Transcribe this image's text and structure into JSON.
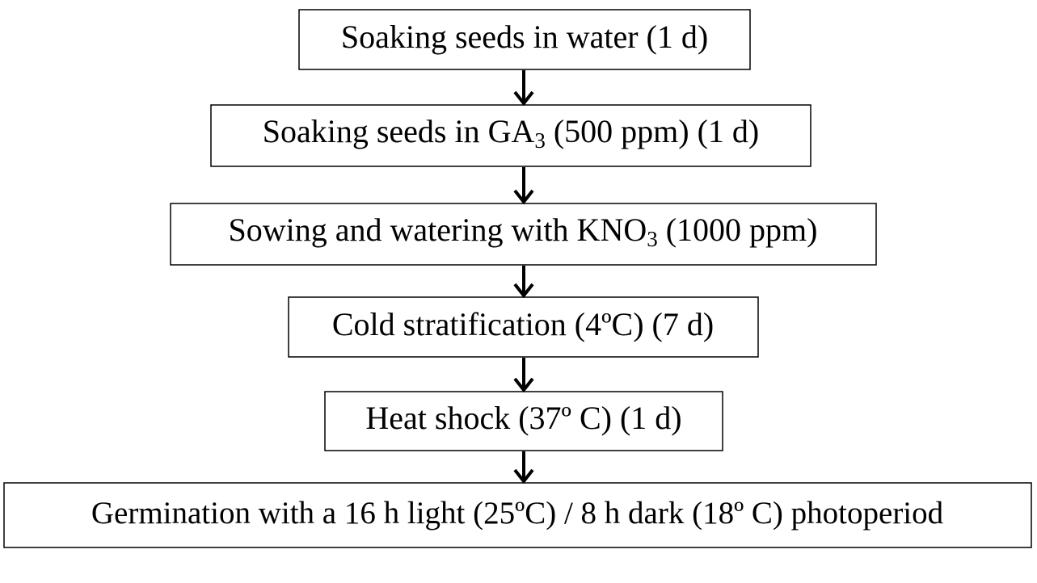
{
  "nodes": [
    {
      "parts": [
        "Soaking seeds in water (1 d)"
      ]
    },
    {
      "parts": [
        "Soaking seeds in GA",
        "3",
        " (500 ppm) (1 d)"
      ]
    },
    {
      "parts": [
        "Sowing and watering with KNO",
        "3",
        " (1000 ppm)"
      ]
    },
    {
      "parts": [
        "Cold stratification (4ºC) (7 d)"
      ]
    },
    {
      "parts": [
        "Heat shock (37º C) (1 d)"
      ]
    },
    {
      "parts": [
        "Germination with a 16 h light (25ºC) / 8 h dark (18º C) photoperiod"
      ]
    }
  ]
}
